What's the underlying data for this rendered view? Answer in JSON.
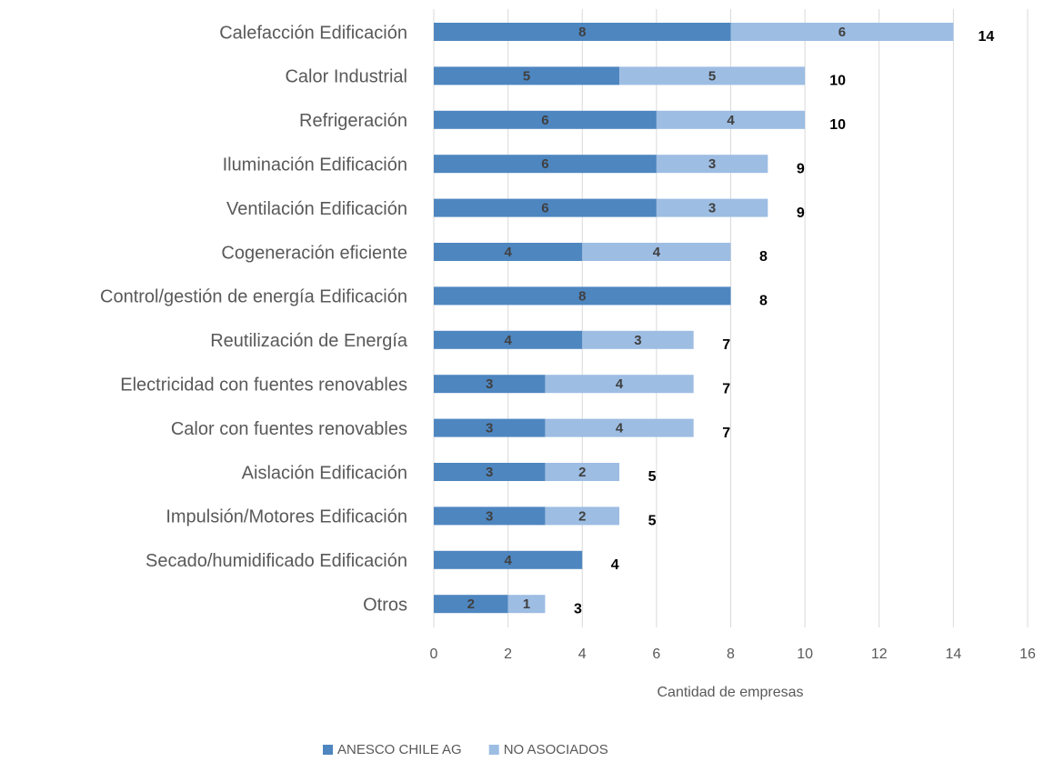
{
  "chart_data": {
    "type": "stacked_barh",
    "categories": [
      "Calefacción Edificación",
      "Calor Industrial",
      "Refrigeración",
      "Iluminación Edificación",
      "Ventilación Edificación",
      "Cogeneración eficiente",
      "Control/gestión de energía Edificación",
      "Reutilización de Energía",
      "Electricidad con fuentes renovables",
      "Calor con fuentes renovables",
      "Aislación Edificación",
      "Impulsión/Motores Edificación",
      "Secado/humidificado Edificación",
      "Otros"
    ],
    "series": [
      {
        "name": "ANESCO CHILE AG",
        "color": "#4e86c0",
        "values": [
          8,
          5,
          6,
          6,
          6,
          4,
          8,
          4,
          3,
          3,
          3,
          3,
          4,
          2
        ]
      },
      {
        "name": "NO ASOCIADOS",
        "color": "#9dbde3",
        "values": [
          6,
          5,
          4,
          3,
          3,
          4,
          null,
          3,
          4,
          4,
          2,
          2,
          null,
          1
        ]
      }
    ],
    "total_labels": [
      14,
      10,
      10,
      9,
      9,
      8,
      8,
      7,
      7,
      7,
      5,
      5,
      4,
      3
    ],
    "xlabel": "Cantidad de empresas",
    "xlim": [
      0,
      16
    ],
    "xticks": [
      0,
      2,
      4,
      6,
      8,
      10,
      12,
      14,
      16
    ],
    "grid": true,
    "legend": "bottom"
  }
}
